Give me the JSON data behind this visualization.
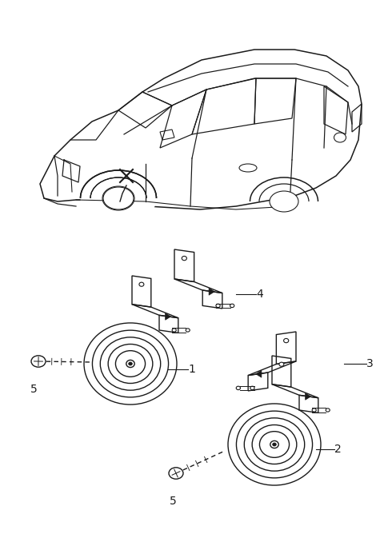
{
  "background_color": "#ffffff",
  "line_color": "#1a1a1a",
  "figure_width": 4.8,
  "figure_height": 6.73,
  "dpi": 100,
  "label_fontsize": 10,
  "label_color": "#1a1a1a"
}
